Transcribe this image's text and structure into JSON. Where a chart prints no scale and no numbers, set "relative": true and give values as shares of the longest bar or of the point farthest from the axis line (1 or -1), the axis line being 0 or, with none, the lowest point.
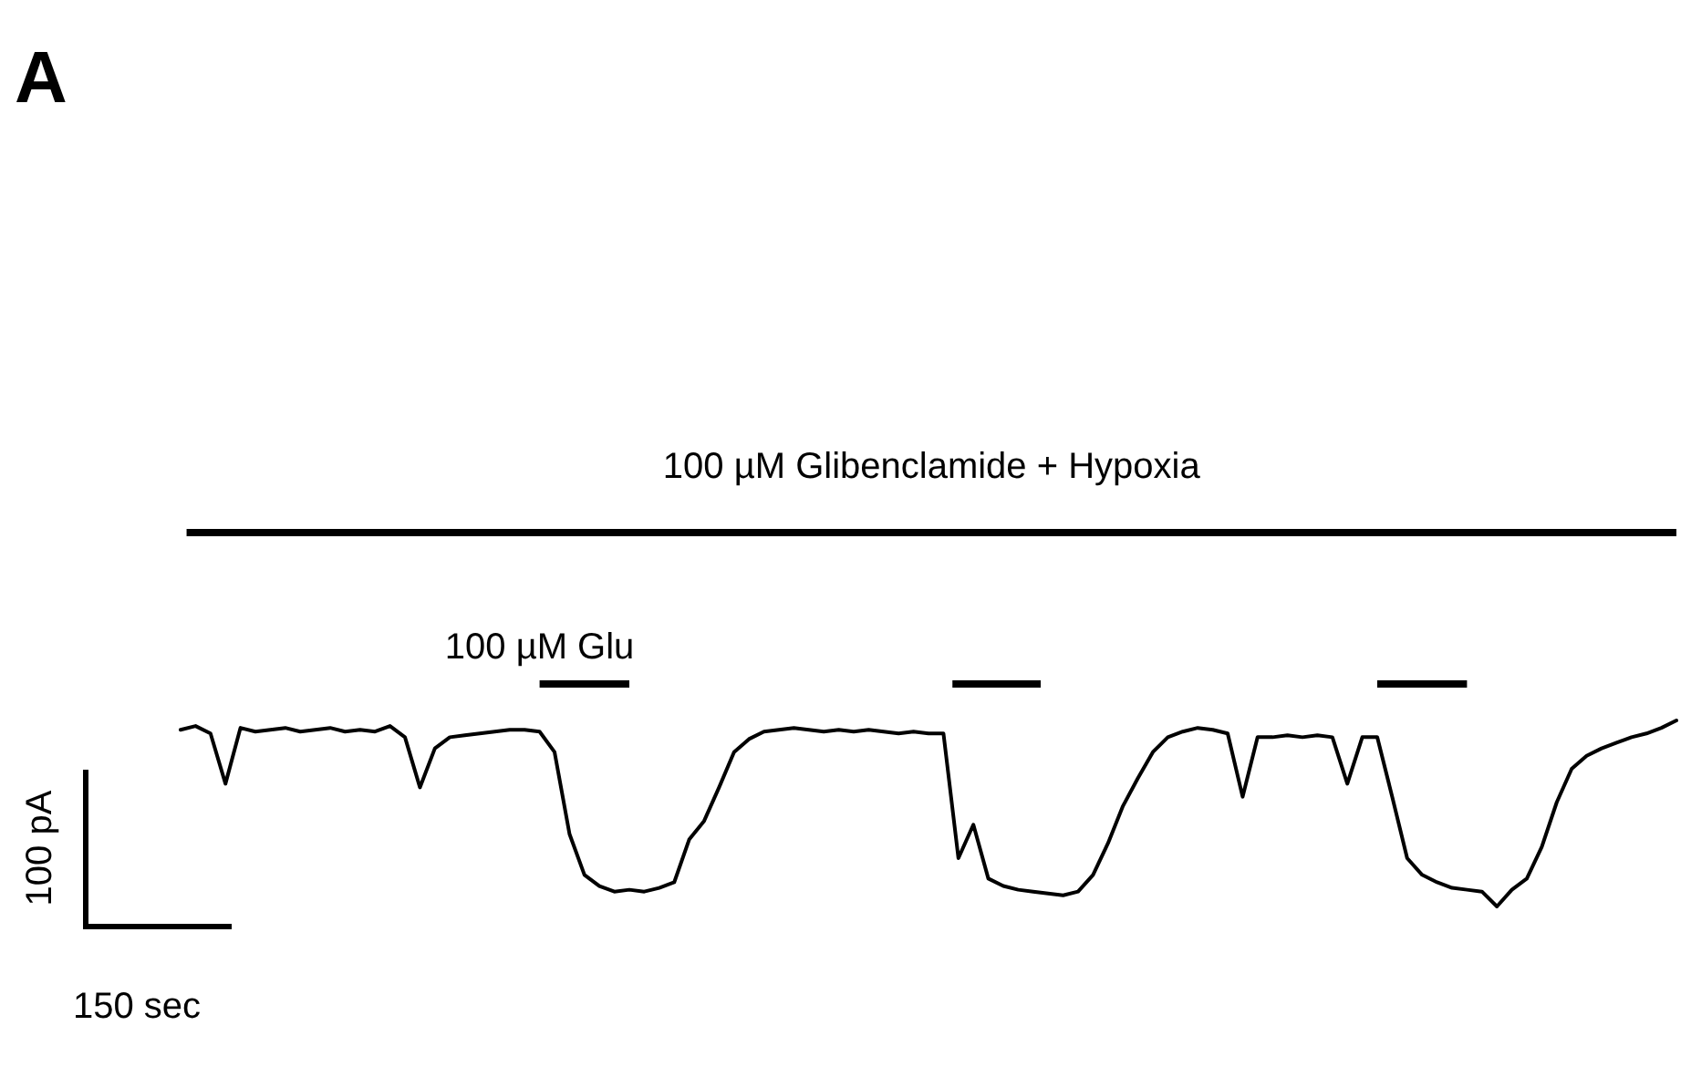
{
  "chart_data": {
    "type": "line",
    "title": "A",
    "relative": true,
    "color": "#000000",
    "line_style": "solid",
    "categories": [
      null,
      null,
      null,
      null,
      null,
      null,
      null,
      null,
      null,
      null,
      null,
      null,
      null,
      null,
      null,
      null,
      null,
      null,
      null,
      null,
      null,
      null,
      null,
      null,
      null,
      null,
      null,
      null,
      null,
      null,
      null,
      null,
      null,
      null,
      null,
      null,
      null,
      null,
      null,
      null,
      null,
      null,
      null,
      null,
      null,
      null,
      null,
      null,
      null,
      null,
      null,
      null,
      null,
      null,
      null,
      null,
      null,
      null,
      null,
      null,
      null,
      null,
      null,
      null,
      null,
      null,
      null,
      null,
      null,
      null,
      null,
      null,
      null,
      null,
      null,
      null,
      null,
      null,
      null,
      null,
      null,
      null,
      null,
      null,
      null,
      null,
      null,
      null,
      null,
      null,
      null,
      null,
      null,
      null,
      null,
      null,
      null,
      null,
      null,
      null,
      null
    ],
    "values": [
      0.95,
      0.97,
      0.93,
      0.66,
      0.96,
      0.94,
      0.95,
      0.96,
      0.94,
      0.95,
      0.96,
      0.94,
      0.95,
      0.94,
      0.97,
      0.91,
      0.64,
      0.85,
      0.91,
      0.92,
      0.93,
      0.94,
      0.95,
      0.95,
      0.94,
      0.83,
      0.39,
      0.17,
      0.11,
      0.08,
      0.09,
      0.08,
      0.1,
      0.13,
      0.36,
      0.46,
      0.64,
      0.83,
      0.9,
      0.94,
      0.95,
      0.96,
      0.95,
      0.94,
      0.95,
      0.94,
      0.95,
      0.94,
      0.93,
      0.94,
      0.93,
      0.93,
      0.26,
      0.44,
      0.15,
      0.11,
      0.09,
      0.08,
      0.07,
      0.06,
      0.08,
      0.17,
      0.34,
      0.54,
      0.69,
      0.83,
      0.91,
      0.94,
      0.96,
      0.95,
      0.93,
      0.59,
      0.91,
      0.91,
      0.92,
      0.91,
      0.92,
      0.91,
      0.66,
      0.91,
      0.91,
      0.59,
      0.26,
      0.17,
      0.13,
      0.1,
      0.09,
      0.08,
      0,
      0.09,
      0.15,
      0.32,
      0.56,
      0.74,
      0.81,
      0.85,
      0.88,
      0.91,
      0.93,
      0.96,
      1
    ],
    "annotations": [
      "100 µM Glibenclamide + Hypoxia",
      "100 µM Glu",
      "100 pA",
      "150 sec"
    ]
  }
}
